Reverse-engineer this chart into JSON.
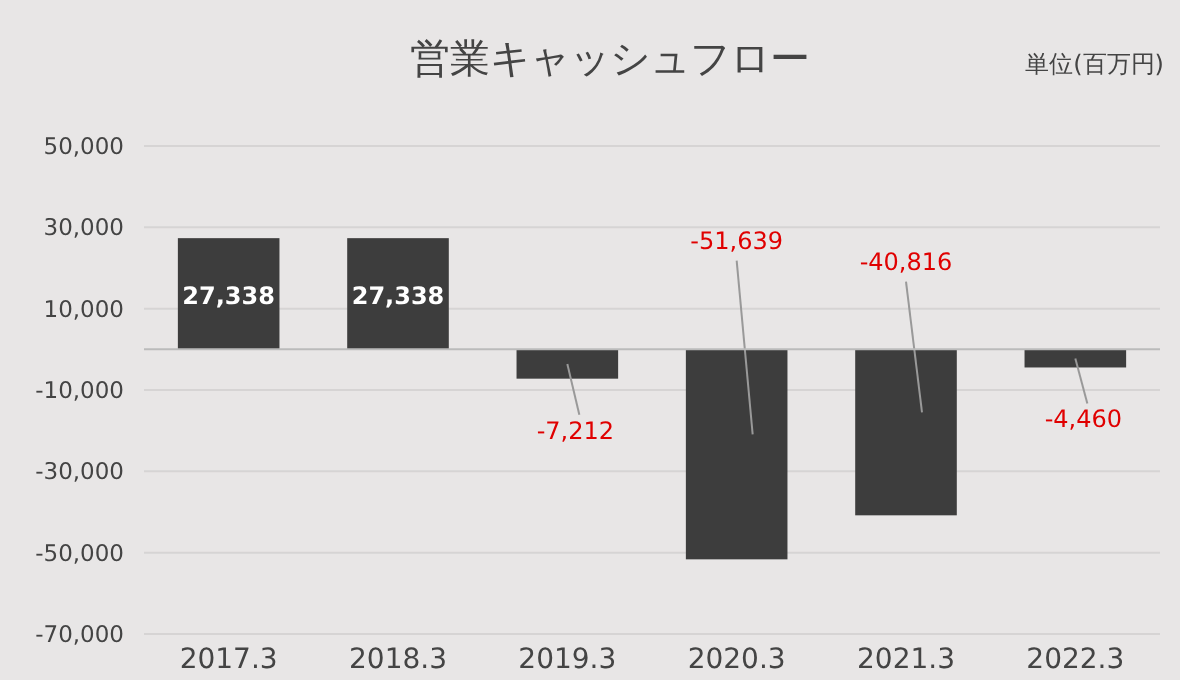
{
  "chart_data": {
    "type": "bar",
    "title": "営業キャッシュフロー",
    "annotations": [
      "単位(百万円)"
    ],
    "categories": [
      "2017.3",
      "2018.3",
      "2019.3",
      "2020.3",
      "2021.3",
      "2022.3"
    ],
    "values": [
      27338,
      27338,
      -7212,
      -51639,
      -40816,
      -4460
    ],
    "value_labels": [
      "27,338",
      "27,338",
      "-7,212",
      "-51,639",
      "-40,816",
      "-4,460"
    ],
    "color": "#3d3d3d",
    "ylim": [
      -70000,
      50000
    ],
    "yticks": [
      {
        "value": 50000,
        "label": "50,000"
      },
      {
        "value": 30000,
        "label": "30,000"
      },
      {
        "value": 10000,
        "label": "10,000"
      },
      {
        "value": -10000,
        "label": "-10,000"
      },
      {
        "value": -30000,
        "label": "-30,000"
      },
      {
        "value": -50000,
        "label": "-50,000"
      },
      {
        "value": -70000,
        "label": "-70,000"
      }
    ],
    "grid": "y"
  }
}
